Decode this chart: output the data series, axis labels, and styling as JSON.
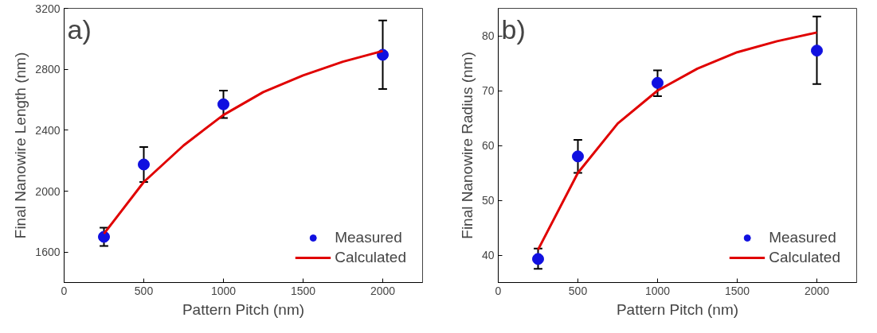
{
  "chart_data": [
    {
      "type": "scatter",
      "xlabel": "Pattern Pitch (nm)",
      "ylabel": "Final Nanowire Length (nm)",
      "annotations": [
        "a)"
      ],
      "xlim": [
        0,
        2250
      ],
      "xticks": [
        0,
        500,
        1000,
        1500,
        2000
      ],
      "ylim": [
        1400,
        3200
      ],
      "yticks": [
        1600,
        2000,
        2400,
        2800,
        3200
      ],
      "grid": false,
      "legend": "bottom right",
      "series": [
        {
          "name": "Measured",
          "marker": "circle",
          "color": "#1010e0",
          "x": [
            250,
            500,
            1000,
            2000
          ],
          "values": [
            1700,
            2175,
            2570,
            2895
          ],
          "errors": [
            [
              1640,
              1760
            ],
            [
              2060,
              2290
            ],
            [
              2480,
              2660
            ],
            [
              2670,
              3120
            ]
          ]
        },
        {
          "name": "Calculated",
          "type": "line",
          "line_style": "solid",
          "color": "#e00000",
          "x": [
            250,
            500,
            750,
            1000,
            1250,
            1500,
            1750,
            2000
          ],
          "values": [
            1720,
            2060,
            2300,
            2500,
            2650,
            2760,
            2850,
            2920
          ]
        }
      ]
    },
    {
      "type": "scatter",
      "xlabel": "Pattern Pitch (nm)",
      "ylabel": "Final Nanowire Radius (nm)",
      "annotations": [
        "b)"
      ],
      "xlim": [
        0,
        2250
      ],
      "xticks": [
        0,
        500,
        1000,
        1500,
        2000
      ],
      "ylim": [
        35,
        85
      ],
      "yticks": [
        40,
        50,
        60,
        70,
        80
      ],
      "grid": false,
      "legend": "bottom right",
      "series": [
        {
          "name": "Measured",
          "marker": "circle",
          "color": "#1010e0",
          "x": [
            250,
            500,
            1000,
            2000
          ],
          "values": [
            39.3,
            58,
            71.4,
            77.3
          ],
          "errors": [
            [
              37.5,
              41.2
            ],
            [
              55,
              61
            ],
            [
              69,
              73.7
            ],
            [
              71.2,
              83.5
            ]
          ]
        },
        {
          "name": "Calculated",
          "type": "line",
          "line_style": "solid",
          "color": "#e00000",
          "x": [
            250,
            500,
            750,
            1000,
            1250,
            1500,
            1750,
            2000
          ],
          "values": [
            41,
            55,
            64,
            70,
            74,
            77,
            79,
            80.6
          ]
        }
      ]
    }
  ]
}
